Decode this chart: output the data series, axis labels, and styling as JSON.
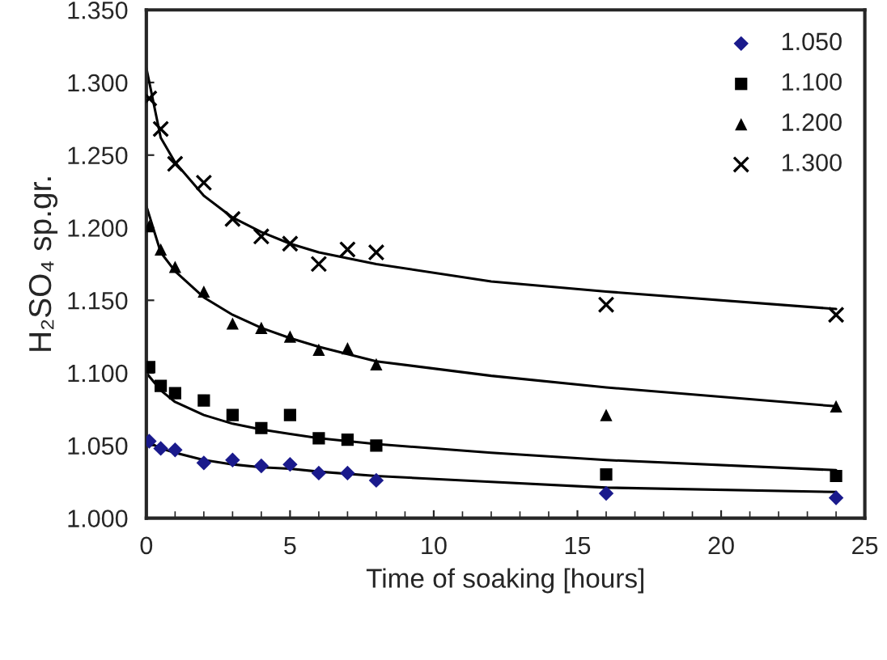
{
  "chart_data": {
    "type": "scatter",
    "xlabel": "Time of soaking [hours]",
    "ylabel": "H₂SO₄ sp.gr.",
    "xlim": [
      0,
      25
    ],
    "xticks": [
      0,
      5,
      10,
      15,
      20,
      25
    ],
    "ylim": [
      1.0,
      1.35
    ],
    "yticks": [
      {
        "value": 1.0,
        "label": "1.000"
      },
      {
        "value": 1.05,
        "label": "1.050"
      },
      {
        "value": 1.1,
        "label": "1.100"
      },
      {
        "value": 1.15,
        "label": "1.150"
      },
      {
        "value": 1.2,
        "label": "1.200"
      },
      {
        "value": 1.25,
        "label": "1.250"
      },
      {
        "value": 1.3,
        "label": "1.300"
      },
      {
        "value": 1.35,
        "label": "1.350"
      }
    ],
    "grid": false,
    "legend": "top right",
    "x": [
      0.1,
      0.5,
      1,
      2,
      3,
      4,
      5,
      6,
      7,
      8,
      16,
      24
    ],
    "series": [
      {
        "name": "1.050",
        "color": "#1a1a8c",
        "marker": "diamond",
        "values": [
          1.053,
          1.048,
          1.047,
          1.038,
          1.04,
          1.036,
          1.037,
          1.031,
          1.031,
          1.026,
          1.017,
          1.014
        ]
      },
      {
        "name": "1.100",
        "color": "#000000",
        "marker": "square",
        "values": [
          1.104,
          1.091,
          1.086,
          1.081,
          1.071,
          1.062,
          1.071,
          1.055,
          1.054,
          1.05,
          1.03,
          1.029
        ]
      },
      {
        "name": "1.200",
        "color": "#000000",
        "marker": "triangle",
        "values": [
          1.201,
          1.185,
          1.173,
          1.156,
          1.134,
          1.131,
          1.125,
          1.116,
          1.117,
          1.106,
          1.071,
          1.077
        ]
      },
      {
        "name": "1.300",
        "color": "#000000",
        "marker": "cross",
        "values": [
          1.289,
          1.268,
          1.244,
          1.231,
          1.206,
          1.194,
          1.189,
          1.175,
          1.185,
          1.183,
          1.147,
          1.14
        ]
      },
      {
        "type": "line",
        "color": "#000000",
        "marker": "none",
        "x": [
          0,
          0.5,
          1,
          2,
          3,
          4,
          5,
          6,
          8,
          12,
          16,
          24
        ],
        "values": [
          1.053,
          1.048,
          1.045,
          1.04,
          1.037,
          1.035,
          1.034,
          1.032,
          1.029,
          1.025,
          1.021,
          1.018
        ]
      },
      {
        "type": "line",
        "color": "#000000",
        "marker": "none",
        "x": [
          0,
          0.5,
          1,
          2,
          3,
          4,
          5,
          6,
          8,
          12,
          16,
          24
        ],
        "values": [
          1.1,
          1.088,
          1.08,
          1.071,
          1.065,
          1.061,
          1.058,
          1.055,
          1.051,
          1.045,
          1.04,
          1.033
        ]
      },
      {
        "type": "line",
        "color": "#000000",
        "marker": "none",
        "x": [
          0,
          0.5,
          1,
          2,
          3,
          4,
          5,
          6,
          8,
          12,
          16,
          24
        ],
        "values": [
          1.215,
          1.183,
          1.17,
          1.152,
          1.14,
          1.131,
          1.124,
          1.118,
          1.108,
          1.098,
          1.09,
          1.077
        ]
      },
      {
        "type": "line",
        "color": "#000000",
        "marker": "none",
        "x": [
          0,
          0.5,
          1,
          2,
          3,
          4,
          5,
          6,
          8,
          12,
          16,
          24
        ],
        "values": [
          1.31,
          1.262,
          1.245,
          1.222,
          1.207,
          1.197,
          1.189,
          1.183,
          1.175,
          1.163,
          1.156,
          1.144
        ]
      }
    ]
  }
}
